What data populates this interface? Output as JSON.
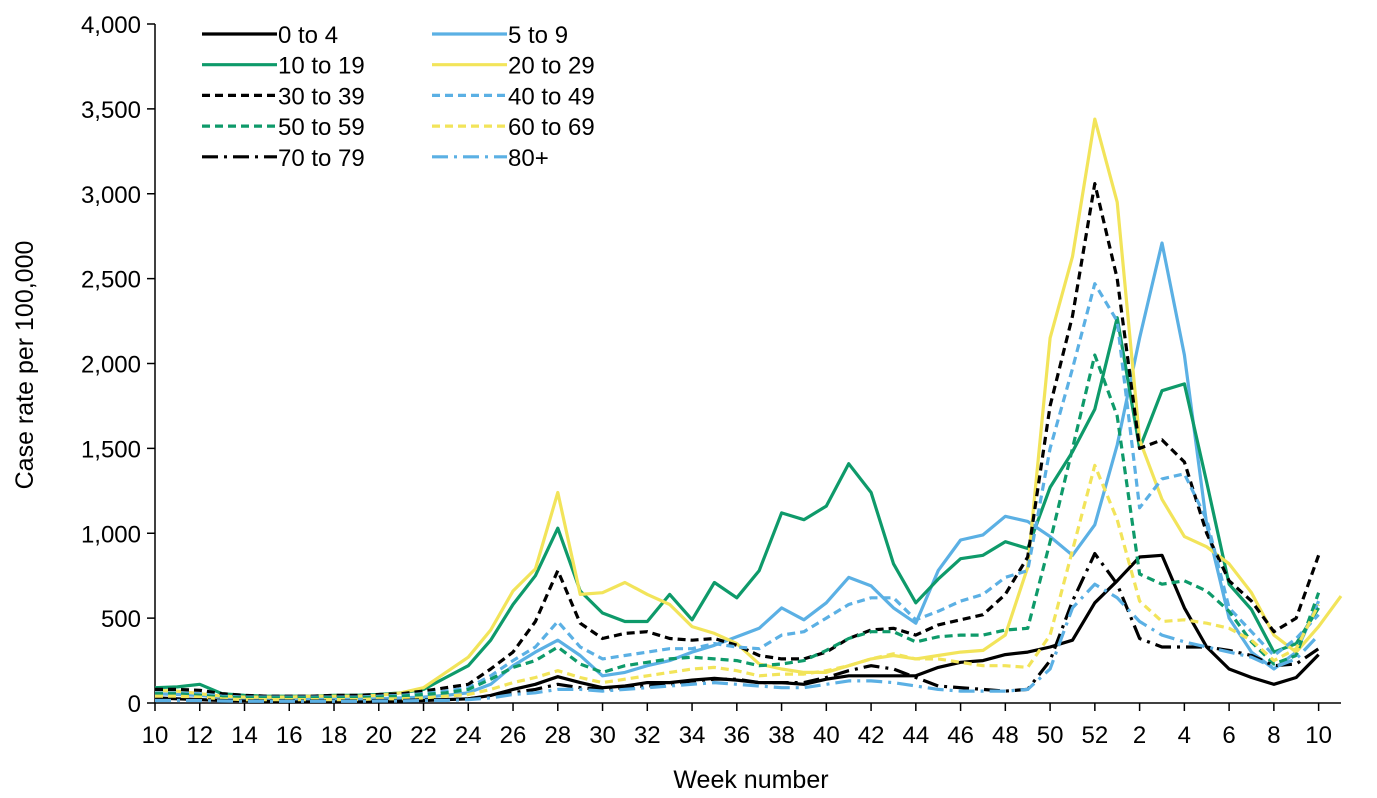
{
  "chart_data": {
    "type": "line",
    "title": "",
    "xlabel": "Week number",
    "ylabel": "Case rate per 100,000",
    "ylim": [
      0,
      4000
    ],
    "yticks": [
      0,
      500,
      1000,
      1500,
      2000,
      2500,
      3000,
      3500,
      4000
    ],
    "ytick_labels": [
      "0",
      "500",
      "1,000",
      "1,500",
      "2,000",
      "2,500",
      "3,000",
      "3,500",
      "4,000"
    ],
    "grid": false,
    "legend_position": "top-left",
    "x": [
      10,
      11,
      12,
      13,
      14,
      15,
      16,
      17,
      18,
      19,
      20,
      21,
      22,
      23,
      24,
      25,
      26,
      27,
      28,
      29,
      30,
      31,
      32,
      33,
      34,
      35,
      36,
      37,
      38,
      39,
      40,
      41,
      42,
      43,
      44,
      45,
      46,
      47,
      48,
      49,
      50,
      51,
      52,
      53,
      1,
      2,
      3,
      4,
      5,
      6,
      7,
      8,
      9,
      10
    ],
    "xtick_labels": [
      "10",
      "12",
      "14",
      "16",
      "18",
      "20",
      "22",
      "24",
      "26",
      "28",
      "30",
      "32",
      "34",
      "36",
      "38",
      "40",
      "42",
      "44",
      "46",
      "48",
      "50",
      "52",
      "2",
      "4",
      "6",
      "8",
      "10"
    ],
    "series": [
      {
        "name": "0 to 4",
        "color": "#000000",
        "dash": "solid",
        "values": [
          30,
          25,
          20,
          15,
          15,
          12,
          10,
          10,
          10,
          10,
          10,
          12,
          15,
          20,
          25,
          45,
          80,
          110,
          155,
          120,
          90,
          100,
          120,
          120,
          135,
          145,
          135,
          120,
          120,
          110,
          140,
          160,
          160,
          160,
          160,
          210,
          240,
          250,
          285,
          300,
          330,
          370,
          590,
          720,
          860,
          870,
          560,
          330,
          200,
          150,
          110,
          150,
          285,
          null
        ]
      },
      {
        "name": "5 to 9",
        "color": "#5bb0e4",
        "dash": "solid",
        "values": [
          55,
          50,
          45,
          35,
          30,
          28,
          25,
          25,
          25,
          25,
          25,
          30,
          35,
          45,
          60,
          110,
          220,
          300,
          370,
          280,
          160,
          180,
          220,
          250,
          300,
          340,
          390,
          440,
          560,
          490,
          590,
          740,
          690,
          560,
          470,
          780,
          960,
          990,
          1100,
          1070,
          980,
          870,
          1050,
          1520,
          2150,
          2710,
          2050,
          1050,
          500,
          300,
          200,
          300,
          600,
          null
        ]
      },
      {
        "name": "10 to 19",
        "color": "#0e9a6a",
        "dash": "solid",
        "values": [
          90,
          95,
          110,
          55,
          45,
          40,
          40,
          40,
          45,
          45,
          50,
          60,
          80,
          150,
          220,
          370,
          580,
          750,
          1030,
          660,
          530,
          480,
          480,
          640,
          490,
          710,
          620,
          780,
          1120,
          1080,
          1160,
          1410,
          1240,
          820,
          590,
          730,
          850,
          870,
          950,
          910,
          1270,
          1480,
          1730,
          2270,
          1500,
          1840,
          1880,
          1300,
          700,
          550,
          300,
          350,
          560,
          null
        ]
      },
      {
        "name": "20 to 29",
        "color": "#f2e45a",
        "dash": "solid",
        "values": [
          75,
          70,
          55,
          40,
          35,
          35,
          35,
          40,
          40,
          40,
          45,
          60,
          90,
          180,
          270,
          430,
          660,
          790,
          1240,
          640,
          650,
          710,
          640,
          580,
          450,
          410,
          350,
          230,
          200,
          180,
          180,
          220,
          260,
          280,
          260,
          280,
          300,
          310,
          400,
          800,
          2150,
          2630,
          3440,
          2950,
          1550,
          1200,
          980,
          920,
          820,
          650,
          400,
          300,
          450,
          630
        ]
      },
      {
        "name": "30 to 39",
        "color": "#000000",
        "dash": "8,5",
        "values": [
          80,
          80,
          75,
          55,
          45,
          40,
          40,
          40,
          45,
          45,
          50,
          55,
          70,
          90,
          110,
          200,
          300,
          480,
          780,
          470,
          380,
          410,
          420,
          380,
          370,
          380,
          340,
          280,
          260,
          260,
          300,
          380,
          430,
          440,
          400,
          460,
          490,
          520,
          640,
          860,
          1750,
          2280,
          3060,
          2500,
          1500,
          1550,
          1420,
          1000,
          720,
          600,
          420,
          500,
          870,
          null
        ]
      },
      {
        "name": "40 to 49",
        "color": "#5bb0e4",
        "dash": "8,5",
        "values": [
          60,
          60,
          55,
          40,
          35,
          35,
          35,
          35,
          35,
          35,
          40,
          45,
          55,
          70,
          90,
          160,
          250,
          330,
          480,
          330,
          260,
          280,
          300,
          320,
          320,
          350,
          330,
          320,
          400,
          420,
          500,
          580,
          620,
          620,
          490,
          540,
          600,
          640,
          740,
          780,
          1500,
          1970,
          2470,
          2250,
          1150,
          1320,
          1350,
          1080,
          560,
          420,
          280,
          380,
          520,
          null
        ]
      },
      {
        "name": "50 to 59",
        "color": "#0e9a6a",
        "dash": "8,5",
        "values": [
          55,
          55,
          45,
          35,
          30,
          30,
          30,
          30,
          30,
          30,
          35,
          40,
          50,
          60,
          80,
          140,
          210,
          250,
          330,
          230,
          180,
          220,
          240,
          260,
          270,
          260,
          250,
          220,
          230,
          250,
          310,
          380,
          420,
          420,
          360,
          390,
          400,
          400,
          430,
          440,
          950,
          1500,
          2050,
          1690,
          760,
          700,
          720,
          660,
          540,
          360,
          230,
          280,
          650,
          null
        ]
      },
      {
        "name": "60 to 69",
        "color": "#f2e45a",
        "dash": "8,5",
        "values": [
          40,
          40,
          35,
          25,
          20,
          20,
          20,
          20,
          20,
          20,
          25,
          25,
          30,
          40,
          50,
          80,
          120,
          150,
          190,
          150,
          120,
          140,
          160,
          180,
          200,
          210,
          190,
          160,
          170,
          170,
          190,
          220,
          260,
          290,
          260,
          260,
          240,
          220,
          220,
          210,
          400,
          900,
          1400,
          1080,
          600,
          480,
          490,
          470,
          440,
          370,
          250,
          320,
          580,
          null
        ]
      },
      {
        "name": "70 to 79",
        "color": "#000000",
        "dash": "16,6,3,6",
        "values": [
          20,
          20,
          20,
          15,
          12,
          12,
          12,
          12,
          12,
          12,
          15,
          15,
          18,
          20,
          25,
          40,
          60,
          80,
          110,
          90,
          80,
          90,
          100,
          110,
          130,
          140,
          140,
          120,
          120,
          120,
          150,
          190,
          220,
          200,
          150,
          100,
          90,
          80,
          70,
          80,
          250,
          600,
          880,
          700,
          380,
          330,
          330,
          330,
          310,
          280,
          220,
          230,
          320,
          null
        ]
      },
      {
        "name": "80+",
        "color": "#5bb0e4",
        "dash": "16,6,3,6",
        "values": [
          15,
          15,
          15,
          12,
          10,
          10,
          10,
          10,
          10,
          10,
          12,
          12,
          15,
          15,
          20,
          30,
          50,
          60,
          80,
          80,
          70,
          80,
          90,
          100,
          110,
          120,
          110,
          100,
          90,
          90,
          110,
          130,
          130,
          120,
          100,
          80,
          70,
          70,
          70,
          80,
          200,
          560,
          700,
          620,
          480,
          400,
          360,
          330,
          300,
          270,
          210,
          260,
          400,
          null
        ]
      }
    ]
  }
}
